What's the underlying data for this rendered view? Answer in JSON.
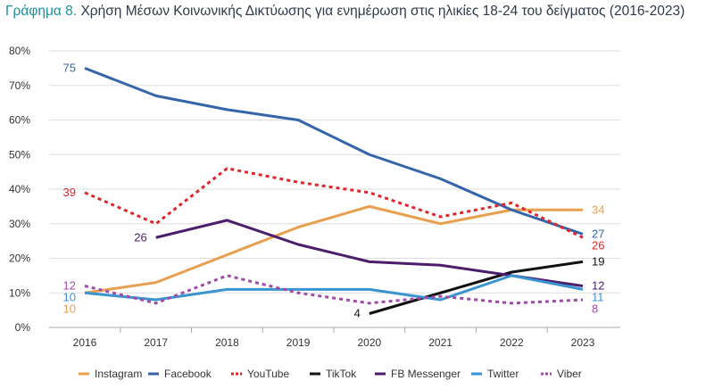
{
  "chart_data": {
    "type": "line",
    "title_prefix": "Γράφημα 8.",
    "title": "Χρήση Μέσων Κοινωνικής Δικτύωσης για ενημέρωση στις ηλικίες 18-24 του δείγματος (2016-2023)",
    "x": [
      "2016",
      "2017",
      "2018",
      "2019",
      "2020",
      "2021",
      "2022",
      "2023"
    ],
    "ylim": [
      0,
      80
    ],
    "yticks": [
      "0%",
      "10%",
      "20%",
      "30%",
      "40%",
      "50%",
      "60%",
      "70%",
      "80%"
    ],
    "grid": true,
    "legend_position": "bottom",
    "series": [
      {
        "name": "Instagram",
        "color": "#e8a04f",
        "dash": false,
        "values": [
          10,
          13,
          21,
          29,
          35,
          30,
          34,
          34
        ]
      },
      {
        "name": "Facebook",
        "color": "#3465aa",
        "dash": false,
        "values": [
          75,
          67,
          63,
          60,
          50,
          43,
          34,
          27
        ]
      },
      {
        "name": "YouTube",
        "color": "#e0262a",
        "dash": true,
        "values": [
          39,
          30,
          46,
          42,
          39,
          32,
          36,
          26
        ]
      },
      {
        "name": "TikTok",
        "color": "#111111",
        "dash": false,
        "values": [
          null,
          null,
          null,
          null,
          4,
          10,
          16,
          19
        ]
      },
      {
        "name": "FB Messenger",
        "color": "#4b1d6b",
        "dash": false,
        "values": [
          null,
          26,
          31,
          24,
          19,
          18,
          15,
          12
        ]
      },
      {
        "name": "Twitter",
        "color": "#3a94d0",
        "dash": false,
        "values": [
          10,
          8,
          11,
          11,
          11,
          8,
          15,
          11
        ]
      },
      {
        "name": "Viber",
        "color": "#a04aa8",
        "dash": true,
        "values": [
          12,
          7,
          15,
          10,
          7,
          9,
          7,
          8
        ]
      }
    ]
  }
}
